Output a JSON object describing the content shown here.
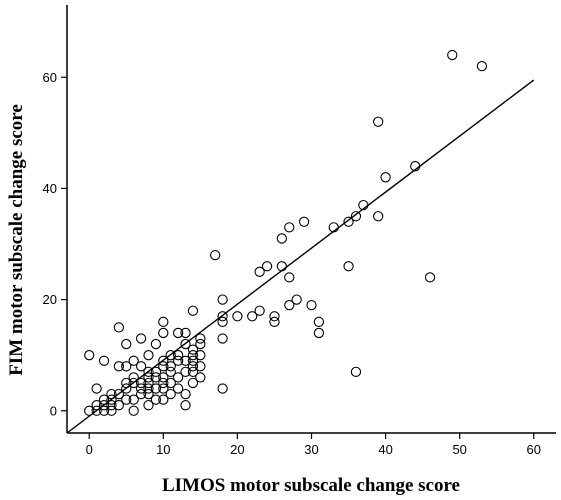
{
  "chart_data": {
    "type": "scatter",
    "title": "",
    "xlabel": "LIMOS motor subscale change score",
    "ylabel": "FIM motor subscale change score",
    "xlim": [
      -3,
      63
    ],
    "ylim": [
      -4,
      73
    ],
    "xticks": [
      0,
      10,
      20,
      30,
      40,
      50,
      60
    ],
    "yticks": [
      0,
      20,
      40,
      60
    ],
    "grid": false,
    "legend": "none",
    "marker": "open-circle",
    "fit_line": {
      "x1": -3,
      "y1": -4,
      "x2": 60,
      "y2": 59.5
    },
    "points": [
      [
        0,
        0
      ],
      [
        0,
        10
      ],
      [
        1,
        0
      ],
      [
        1,
        1
      ],
      [
        1,
        4
      ],
      [
        2,
        0
      ],
      [
        2,
        1
      ],
      [
        2,
        2
      ],
      [
        2,
        9
      ],
      [
        3,
        0
      ],
      [
        3,
        1
      ],
      [
        3,
        2
      ],
      [
        3,
        3
      ],
      [
        4,
        1
      ],
      [
        4,
        3
      ],
      [
        4,
        8
      ],
      [
        4,
        15
      ],
      [
        5,
        2
      ],
      [
        5,
        4
      ],
      [
        5,
        5
      ],
      [
        5,
        8
      ],
      [
        5,
        12
      ],
      [
        6,
        0
      ],
      [
        6,
        2
      ],
      [
        6,
        5
      ],
      [
        6,
        6
      ],
      [
        6,
        9
      ],
      [
        7,
        3
      ],
      [
        7,
        4
      ],
      [
        7,
        5
      ],
      [
        7,
        8
      ],
      [
        7,
        13
      ],
      [
        8,
        1
      ],
      [
        8,
        3
      ],
      [
        8,
        4
      ],
      [
        8,
        5
      ],
      [
        8,
        6
      ],
      [
        8,
        7
      ],
      [
        8,
        10
      ],
      [
        9,
        2
      ],
      [
        9,
        4
      ],
      [
        9,
        6
      ],
      [
        9,
        7
      ],
      [
        9,
        12
      ],
      [
        10,
        2
      ],
      [
        10,
        4
      ],
      [
        10,
        5
      ],
      [
        10,
        6
      ],
      [
        10,
        8
      ],
      [
        10,
        9
      ],
      [
        10,
        14
      ],
      [
        10,
        16
      ],
      [
        11,
        3
      ],
      [
        11,
        5
      ],
      [
        11,
        7
      ],
      [
        11,
        8
      ],
      [
        11,
        10
      ],
      [
        12,
        4
      ],
      [
        12,
        6
      ],
      [
        12,
        9
      ],
      [
        12,
        10
      ],
      [
        12,
        14
      ],
      [
        13,
        1
      ],
      [
        13,
        3
      ],
      [
        13,
        7
      ],
      [
        13,
        9
      ],
      [
        13,
        12
      ],
      [
        13,
        14
      ],
      [
        14,
        5
      ],
      [
        14,
        7
      ],
      [
        14,
        8
      ],
      [
        14,
        9
      ],
      [
        14,
        10
      ],
      [
        14,
        11
      ],
      [
        14,
        18
      ],
      [
        15,
        6
      ],
      [
        15,
        8
      ],
      [
        15,
        10
      ],
      [
        15,
        12
      ],
      [
        15,
        13
      ],
      [
        17,
        28
      ],
      [
        18,
        4
      ],
      [
        18,
        13
      ],
      [
        18,
        16
      ],
      [
        18,
        17
      ],
      [
        18,
        20
      ],
      [
        20,
        17
      ],
      [
        22,
        17
      ],
      [
        23,
        18
      ],
      [
        23,
        25
      ],
      [
        24,
        26
      ],
      [
        25,
        16
      ],
      [
        25,
        17
      ],
      [
        26,
        26
      ],
      [
        26,
        31
      ],
      [
        27,
        19
      ],
      [
        27,
        24
      ],
      [
        27,
        33
      ],
      [
        28,
        20
      ],
      [
        29,
        34
      ],
      [
        30,
        19
      ],
      [
        31,
        14
      ],
      [
        31,
        16
      ],
      [
        33,
        33
      ],
      [
        35,
        26
      ],
      [
        35,
        34
      ],
      [
        36,
        7
      ],
      [
        36,
        35
      ],
      [
        37,
        37
      ],
      [
        39,
        35
      ],
      [
        39,
        52
      ],
      [
        40,
        42
      ],
      [
        44,
        44
      ],
      [
        46,
        24
      ],
      [
        49,
        64
      ],
      [
        53,
        62
      ]
    ]
  }
}
